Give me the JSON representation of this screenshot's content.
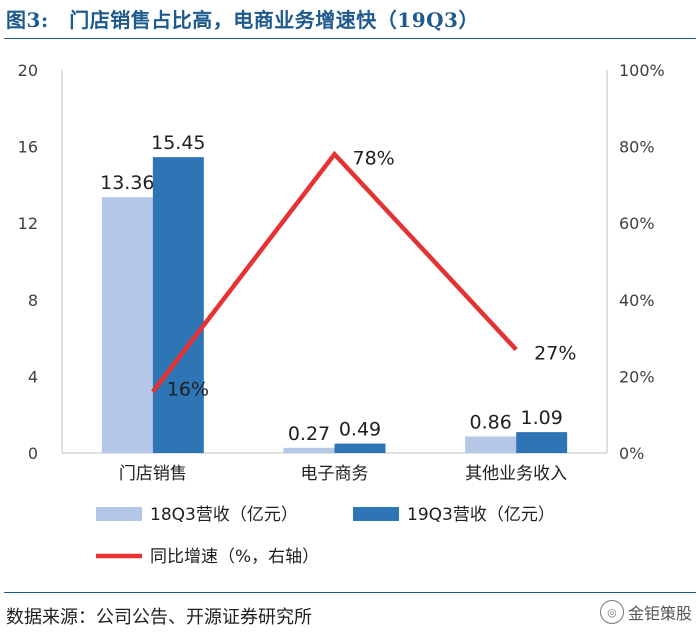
{
  "title": "图3:　门店销售占比高，电商业务增速快（19Q3）",
  "source": "数据来源：公司公告、开源证券研究所",
  "watermark": "金钜策股",
  "colors": {
    "s18": "#b4c7e7",
    "s19": "#2e75b6",
    "line": "#e53232",
    "title": "#1f5a8c"
  },
  "chart_data": {
    "type": "bar",
    "categories": [
      "门店销售",
      "电子商务",
      "其他业务收入"
    ],
    "series": [
      {
        "name": "18Q3营收（亿元）",
        "values": [
          13.36,
          0.27,
          0.86
        ],
        "labels": [
          "13.36",
          "0.27",
          "0.86"
        ]
      },
      {
        "name": "19Q3营收（亿元）",
        "values": [
          15.45,
          0.49,
          1.09
        ],
        "labels": [
          "15.45",
          "0.49",
          "1.09"
        ]
      }
    ],
    "line_series": {
      "name": "同比增速（%，右轴）",
      "values": [
        16,
        78,
        27
      ],
      "labels": [
        "16%",
        "78%",
        "27%"
      ],
      "axis": "right"
    },
    "ylim": [
      0,
      20
    ],
    "yticks": [
      "0",
      "4",
      "8",
      "12",
      "16",
      "20"
    ],
    "ylim_right": [
      0,
      100
    ],
    "yticks_right": [
      "0%",
      "20%",
      "40%",
      "60%",
      "80%",
      "100%"
    ],
    "grid": false,
    "legend_position": "bottom"
  }
}
